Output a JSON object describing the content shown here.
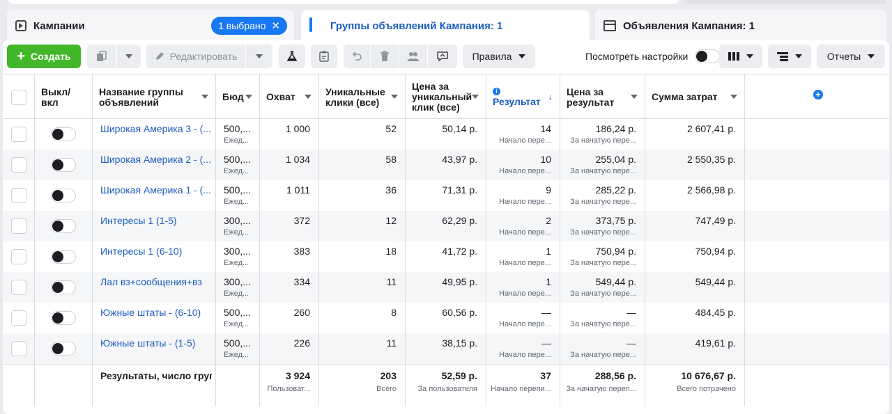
{
  "tabs": {
    "campaigns": "Кампании",
    "selected": "1 выбрано",
    "ad_sets": "Группы объявлений Кампания: 1",
    "ads": "Объявления Кампания: 1"
  },
  "toolbar": {
    "create": "Создать",
    "edit": "Редактировать",
    "rules": "Правила",
    "view_settings": "Посмотреть настройки",
    "reports": "Отчеты"
  },
  "columns": {
    "onoff": "Выкл/ вкл",
    "name": "Название группы объявлений",
    "budget": "Бюд",
    "reach": "Охват",
    "unique_clicks": "Уникальные клики (все)",
    "cost_unique": "Цена за уникальный клик (все)",
    "result": "Результат",
    "cost_result": "Цена за результат",
    "spend": "Сумма затрат"
  },
  "rows": [
    {
      "name": "Широкая Америка 3 - (...",
      "budget": "500,...",
      "budget_sub": "Ежед...",
      "reach": "1 000",
      "clicks": "52",
      "cpc": "50,14 р.",
      "result": "14",
      "result_sub": "Начало пере...",
      "cpr": "186,24 р.",
      "cpr_sub": "За начатую пере...",
      "spend": "2 607,41 р."
    },
    {
      "name": "Широкая Америка 2 - (...",
      "budget": "500,...",
      "budget_sub": "Ежед...",
      "reach": "1 034",
      "clicks": "58",
      "cpc": "43,97 р.",
      "result": "10",
      "result_sub": "Начало пере...",
      "cpr": "255,04 р.",
      "cpr_sub": "За начатую пере...",
      "spend": "2 550,35 р."
    },
    {
      "name": "Широкая Америка 1 - (...",
      "budget": "500,...",
      "budget_sub": "Ежед...",
      "reach": "1 011",
      "clicks": "36",
      "cpc": "71,31 р.",
      "result": "9",
      "result_sub": "Начало пере...",
      "cpr": "285,22 р.",
      "cpr_sub": "За начатую пере...",
      "spend": "2 566,98 р."
    },
    {
      "name": "Интересы 1 (1-5)",
      "budget": "300,...",
      "budget_sub": "Ежед...",
      "reach": "372",
      "clicks": "12",
      "cpc": "62,29 р.",
      "result": "2",
      "result_sub": "Начало пере...",
      "cpr": "373,75 р.",
      "cpr_sub": "За начатую пере...",
      "spend": "747,49 р."
    },
    {
      "name": "Интересы 1 (6-10)",
      "budget": "300,...",
      "budget_sub": "Ежед...",
      "reach": "383",
      "clicks": "18",
      "cpc": "41,72 р.",
      "result": "1",
      "result_sub": "Начало пере...",
      "cpr": "750,94 р.",
      "cpr_sub": "За начатую пере...",
      "spend": "750,94 р."
    },
    {
      "name": "Лал вз+сообщения+вз",
      "budget": "300,...",
      "budget_sub": "Ежед...",
      "reach": "334",
      "clicks": "11",
      "cpc": "49,95 р.",
      "result": "1",
      "result_sub": "Начало пере...",
      "cpr": "549,44 р.",
      "cpr_sub": "За начатую пере...",
      "spend": "549,44 р."
    },
    {
      "name": "Южные штаты - (6-10)",
      "budget": "500,...",
      "budget_sub": "Ежед...",
      "reach": "260",
      "clicks": "8",
      "cpc": "60,56 р.",
      "result": "—",
      "result_sub": "Начало пере...",
      "cpr": "—",
      "cpr_sub": "За начатую пере...",
      "spend": "484,45 р."
    },
    {
      "name": "Южные штаты - (1-5)",
      "budget": "500,...",
      "budget_sub": "Ежед...",
      "reach": "226",
      "clicks": "11",
      "cpc": "38,15 р.",
      "result": "—",
      "result_sub": "Начало пере...",
      "cpr": "—",
      "cpr_sub": "За начатую пере...",
      "spend": "419,61 р."
    }
  ],
  "footer": {
    "label": "Результаты, число групп",
    "reach": "3 924",
    "reach_sub": "Пользоват...",
    "clicks": "203",
    "clicks_sub": "Всего",
    "cpc": "52,59 р.",
    "cpc_sub": "За пользователя",
    "result": "37",
    "result_sub": "Начало перепи...",
    "cpr": "288,56 р.",
    "cpr_sub": "За начатую переп...",
    "spend": "10 676,67 р.",
    "spend_sub": "Всего потрачено"
  },
  "colors": {
    "accent": "#1877f2",
    "create": "#42b72a",
    "link": "#1c5dbf"
  }
}
